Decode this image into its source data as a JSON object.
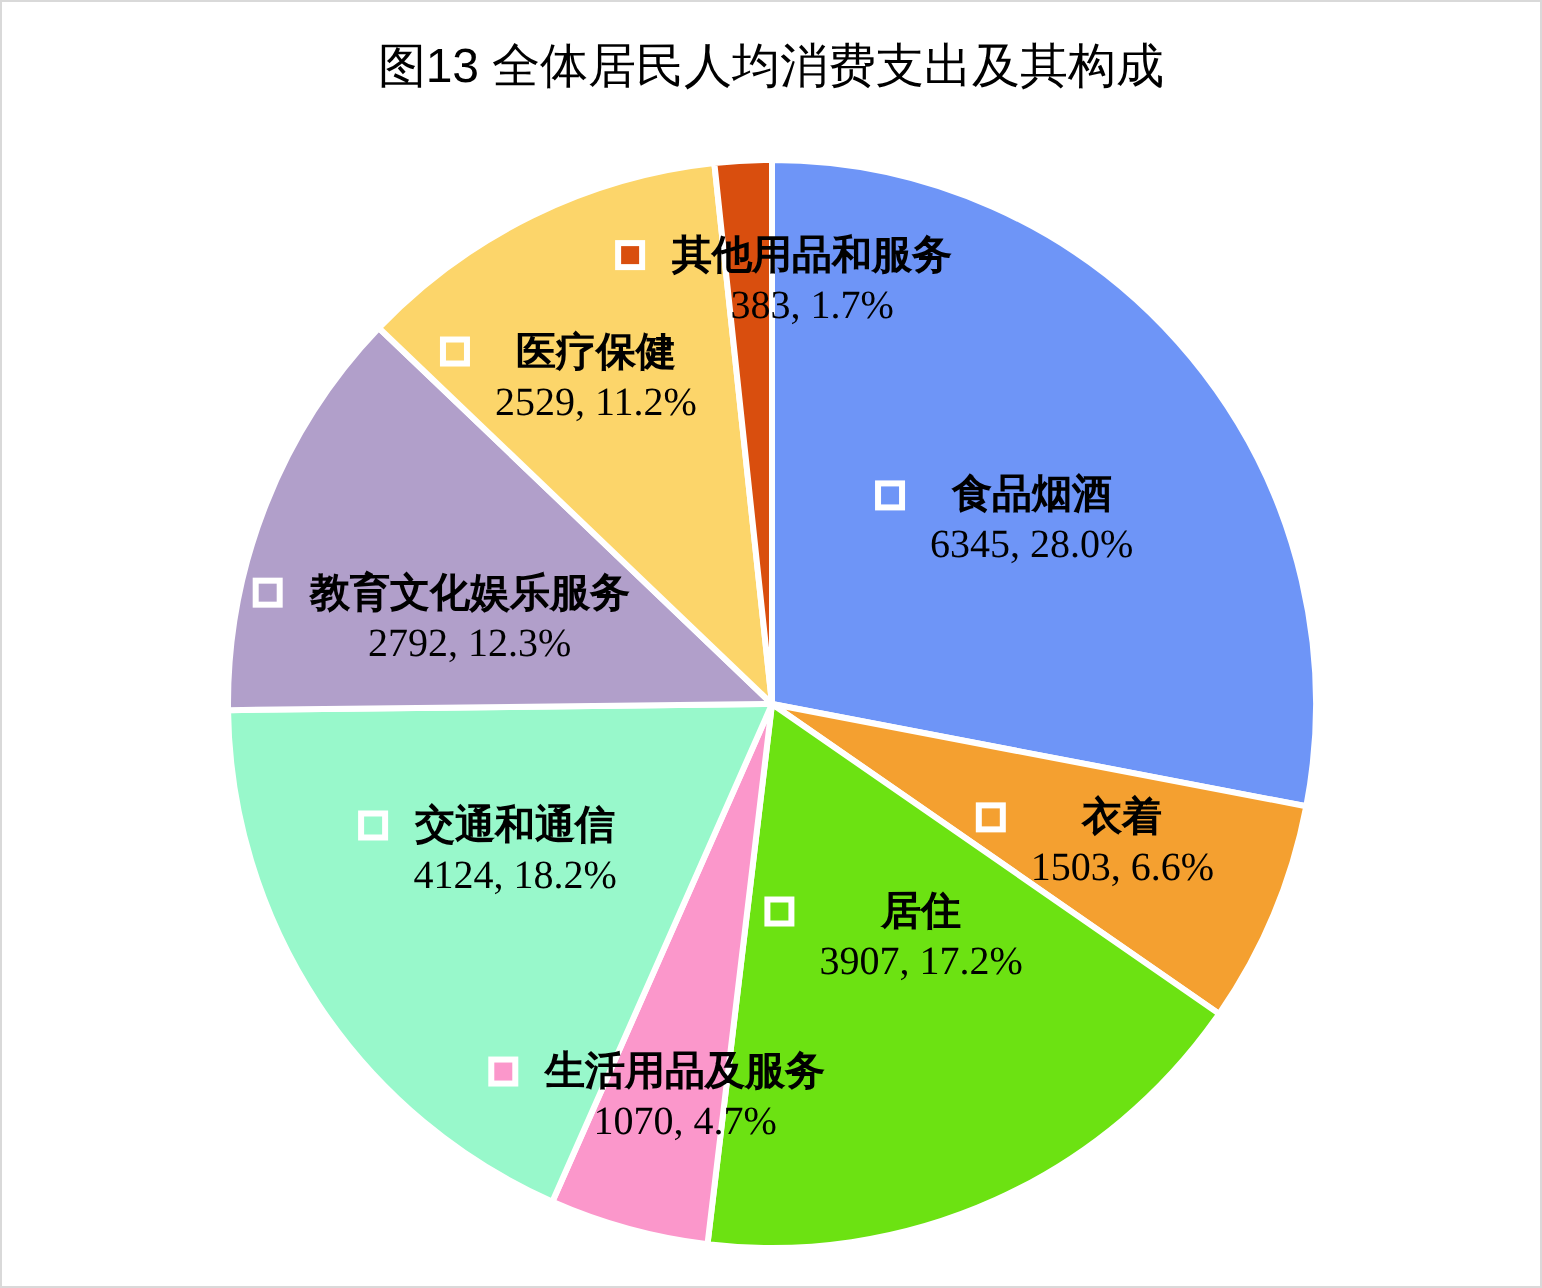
{
  "chart_data": {
    "type": "pie",
    "title": "图13 全体居民人均消费支出及其构成",
    "categories": [
      "食品烟酒",
      "衣着",
      "居住",
      "生活用品及服务",
      "交通和通信",
      "教育文化娱乐服务",
      "医疗保健",
      "其他用品和服务"
    ],
    "values": [
      6345,
      1503,
      3907,
      1070,
      4124,
      2792,
      2529,
      383
    ],
    "colors": [
      "#6e95f7",
      "#f4a030",
      "#6ce212",
      "#fb97cb",
      "#98f8cb",
      "#b19fca",
      "#fcd56a",
      "#d94e0e"
    ],
    "value_labels": [
      "6345, 28.0%",
      "1503, 6.6%",
      "3907, 17.2%",
      "1070, 4.7%",
      "4124, 18.2%",
      "2792, 12.3%",
      "2529, 11.2%",
      "383, 1.7%"
    ],
    "legend": "center"
  }
}
